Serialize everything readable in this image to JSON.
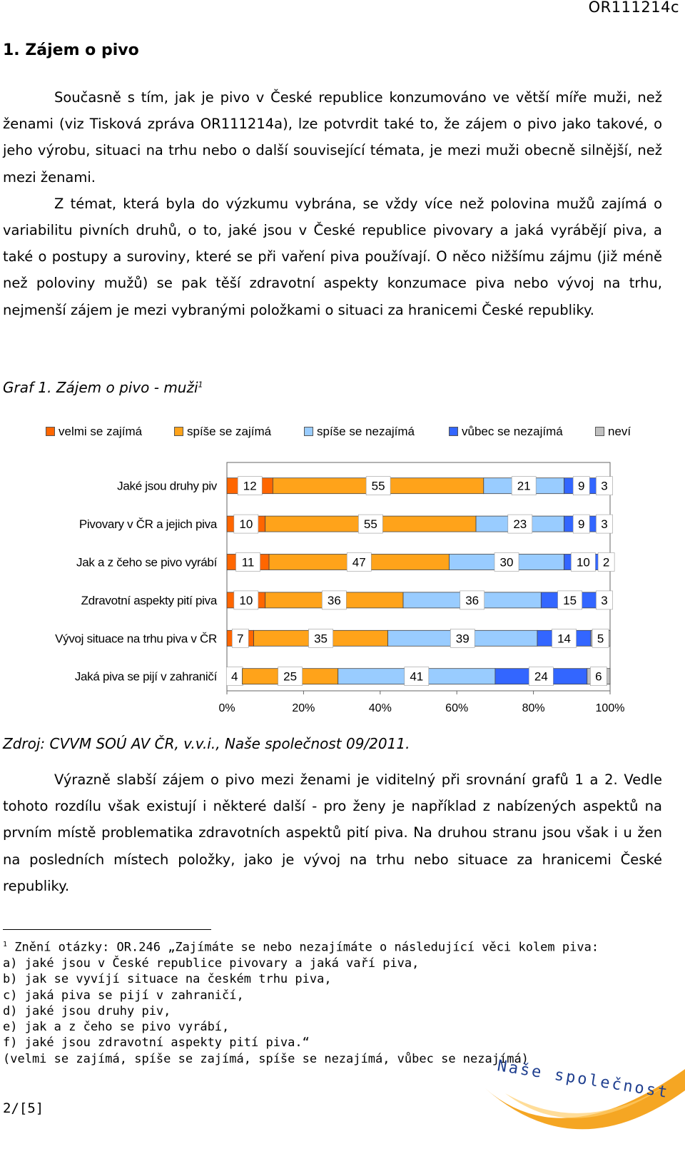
{
  "header": {
    "doc_id": "OR111214c"
  },
  "section_title": "1. Zájem o pivo",
  "intro_paragraphs": [
    "Současně s tím, jak je pivo v České republice konzumováno ve větší míře muži, než ženami (viz Tisková zpráva OR111214a), lze potvrdit také to, že zájem o pivo jako takové, o jeho výrobu, situaci na trhu nebo o další související témata, je mezi muži obecně silnější, než mezi ženami.",
    "Z témat, která byla do výzkumu vybrána, se vždy více než polovina mužů zajímá o variabilitu pivních druhů, o to, jaké jsou v České republice pivovary a jaká vyrábějí piva, a také o postupy a suroviny, které se při vaření piva používají. O něco nižšímu zájmu (již méně než poloviny mužů) se pak těší zdravotní aspekty konzumace piva nebo vývoj na trhu, nejmenší zájem je mezi vybranými položkami o situaci za hranicemi České republiky."
  ],
  "figure": {
    "caption": "Graf 1. Zájem o pivo - muži",
    "caption_sup": "1"
  },
  "chart_data": {
    "type": "bar",
    "orientation": "horizontal",
    "stacked": true,
    "categories": [
      "Jaké jsou druhy piv",
      "Pivovary v ČR a jejich piva",
      "Jak a z čeho se pivo vyrábí",
      "Zdravotní aspekty pití piva",
      "Vývoj situace na trhu piva v ČR",
      "Jaká piva se pijí v zahraničí"
    ],
    "series": [
      {
        "name": "velmi se zajímá",
        "color": "#ff6600",
        "values": [
          12,
          10,
          11,
          10,
          7,
          4
        ]
      },
      {
        "name": "spíše se zajímá",
        "color": "#ffa31a",
        "values": [
          55,
          55,
          47,
          36,
          35,
          25
        ]
      },
      {
        "name": "spíše se nezajímá",
        "color": "#99ccff",
        "values": [
          21,
          23,
          30,
          36,
          39,
          41
        ]
      },
      {
        "name": "vůbec se nezajímá",
        "color": "#3366ff",
        "values": [
          9,
          9,
          10,
          15,
          14,
          24
        ]
      },
      {
        "name": "neví",
        "color": "#c0c0c0",
        "values": [
          3,
          3,
          2,
          3,
          5,
          6
        ]
      }
    ],
    "x_ticks": [
      "0%",
      "20%",
      "40%",
      "60%",
      "80%",
      "100%"
    ],
    "xlim": [
      0,
      100
    ],
    "legend_position": "top",
    "grid": false
  },
  "source_note": "Zdroj: CVVM SOÚ AV ČR, v.v.i., Naše společnost 09/2011.",
  "comparison_paragraph": "Výrazně slabší zájem o pivo mezi ženami je viditelný při srovnání grafů 1 a 2. Vedle tohoto rozdílu však existují i některé další -  pro ženy je například z nabízených aspektů na prvním místě problematika zdravotních aspektů pití piva. Na druhou stranu jsou však i u žen na posledních místech položky, jako je vývoj na trhu nebo situace za hranicemi České republiky.",
  "footnote": {
    "marker": "1",
    "lines": [
      " Znění otázky: OR.246 „Zajímáte se nebo nezajímáte o následující věci kolem piva:",
      "a) jaké jsou v České republice pivovary a jaká vaří piva,",
      "b) jak se vyvíjí situace na českém trhu piva,",
      "c) jaká piva se pijí v zahraničí,",
      "d) jaké jsou druhy piv,",
      "e) jak a z čeho se pivo vyrábí,",
      "f) jaké jsou zdravotní aspekty pití piva.“",
      "(velmi se zajímá, spíše se zajímá, spíše se nezajímá, vůbec se nezajímá)"
    ]
  },
  "logo": {
    "text": "Naše společnost",
    "color": "#f5a623"
  },
  "page_number": "2/[5]"
}
